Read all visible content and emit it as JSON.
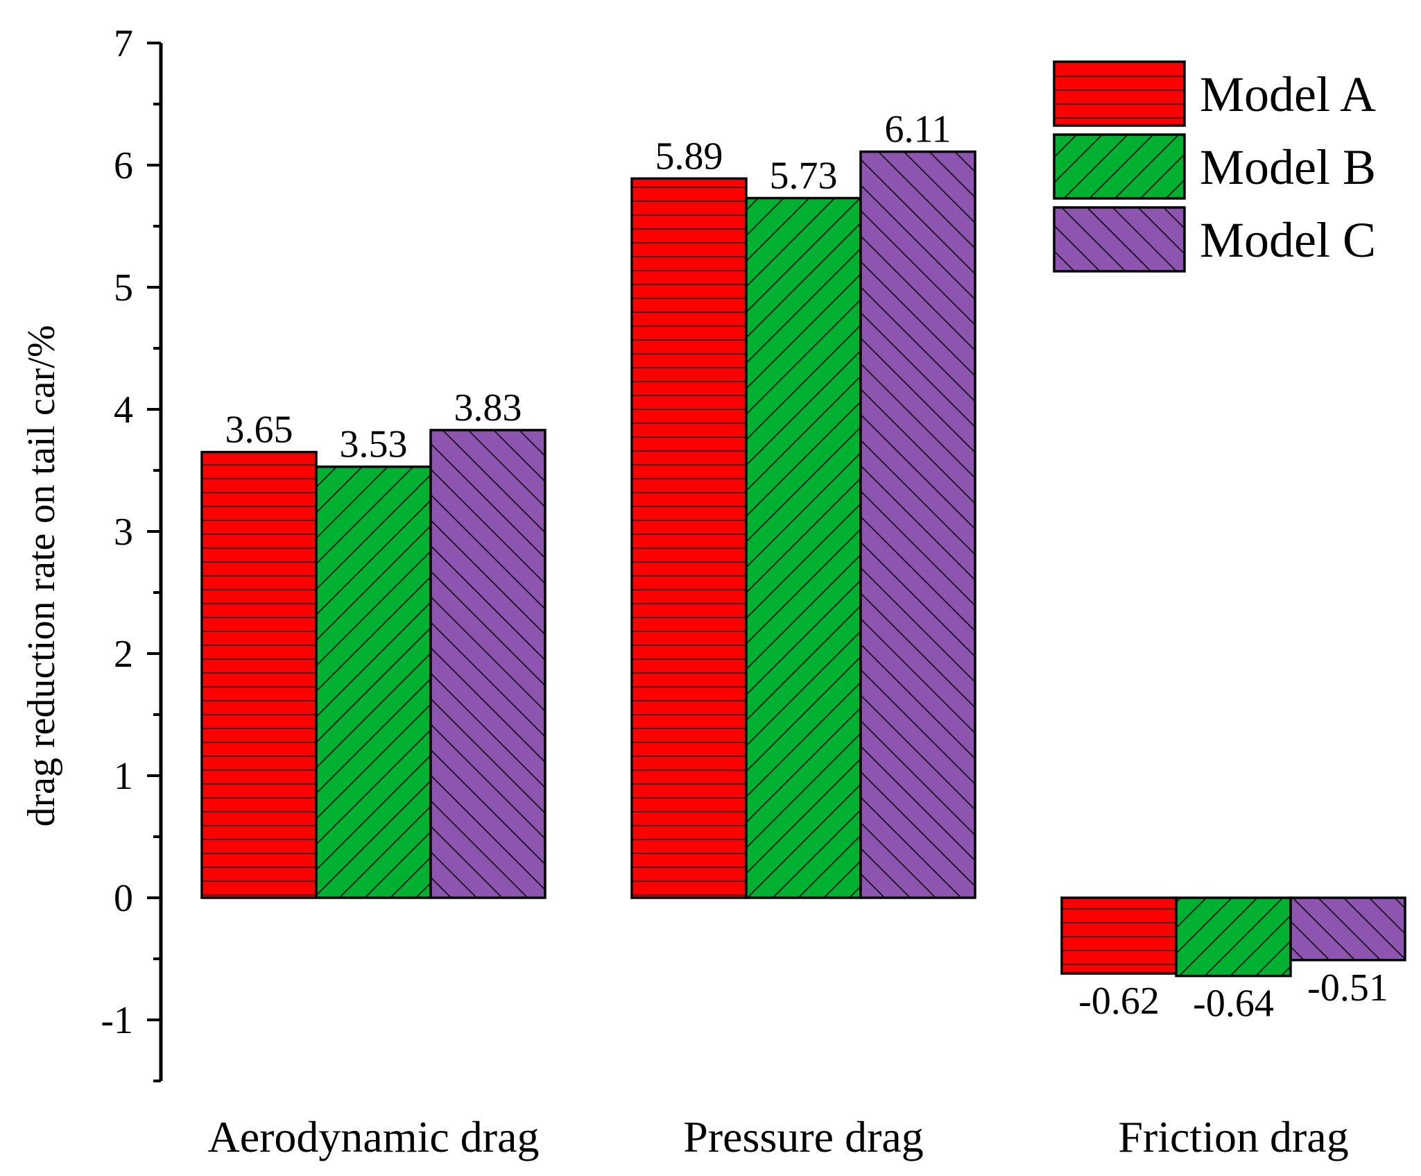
{
  "chart_data": {
    "type": "bar",
    "title": "",
    "xlabel": "",
    "ylabel": "drag reduction rate on tail car/%",
    "ylim": [
      -1.5,
      7
    ],
    "yticks": [
      -1,
      0,
      1,
      2,
      3,
      4,
      5,
      6,
      7
    ],
    "categories": [
      "Aerodynamic drag",
      "Pressure drag",
      "Friction drag"
    ],
    "series": [
      {
        "name": "Model A",
        "color": "#ff0000",
        "pattern": "horizontal",
        "values": [
          3.65,
          5.89,
          -0.62
        ],
        "labels": [
          "3.65",
          "5.89",
          "-0.62"
        ]
      },
      {
        "name": "Model B",
        "color": "#00b030",
        "pattern": "diagonal-forward",
        "values": [
          3.53,
          5.73,
          -0.64
        ],
        "labels": [
          "3.53",
          "5.73",
          "-0.64"
        ]
      },
      {
        "name": "Model C",
        "color": "#8e55b0",
        "pattern": "diagonal-backward",
        "values": [
          3.83,
          6.11,
          -0.51
        ],
        "labels": [
          "3.83",
          "6.11",
          "-0.51"
        ]
      }
    ],
    "legend_position": "top-right",
    "grid": false
  }
}
